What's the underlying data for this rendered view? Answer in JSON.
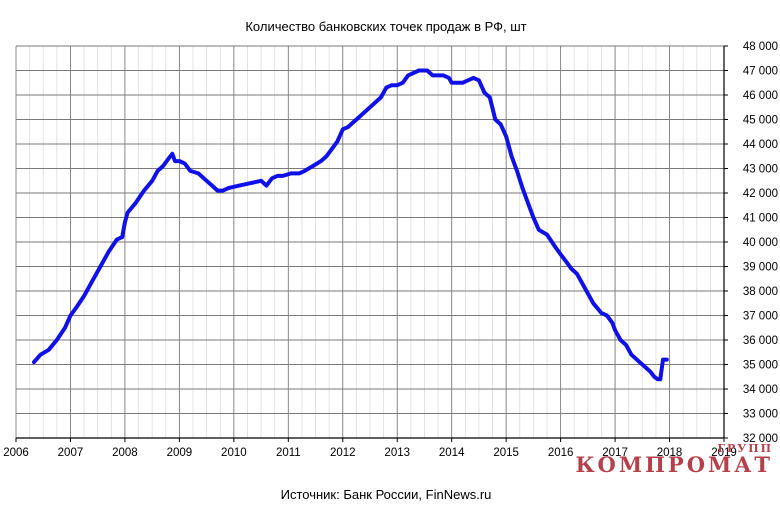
{
  "chart_data": {
    "type": "line",
    "title": "Количество банковских точек продаж в РФ, шт",
    "source": "Источник: Банк России, FinNews.ru",
    "xlabel": "",
    "ylabel": "",
    "xlim": [
      2006,
      2019
    ],
    "ylim": [
      32000,
      48000
    ],
    "grid": true,
    "x_ticks": [
      "2006",
      "2007",
      "2008",
      "2009",
      "2010",
      "2011",
      "2012",
      "2013",
      "2014",
      "2015",
      "2016",
      "2017",
      "2018",
      "2019"
    ],
    "y_ticks": [
      "32 000",
      "33 000",
      "34 000",
      "35 000",
      "36 000",
      "37 000",
      "38 000",
      "39 000",
      "40 000",
      "41 000",
      "42 000",
      "43 000",
      "44 000",
      "45 000",
      "46 000",
      "47 000",
      "48 000"
    ],
    "series": [
      {
        "color": "#1010e8",
        "x": [
          2006.33,
          2006.45,
          2006.6,
          2006.75,
          2006.9,
          2007.0,
          2007.1,
          2007.25,
          2007.4,
          2007.55,
          2007.7,
          2007.85,
          2007.95,
          2008.0,
          2008.05,
          2008.2,
          2008.35,
          2008.5,
          2008.6,
          2008.7,
          2008.8,
          2008.87,
          2008.92,
          2009.0,
          2009.1,
          2009.2,
          2009.35,
          2009.5,
          2009.6,
          2009.7,
          2009.8,
          2009.9,
          2010.1,
          2010.3,
          2010.5,
          2010.6,
          2010.7,
          2010.8,
          2010.9,
          2011.05,
          2011.2,
          2011.3,
          2011.45,
          2011.6,
          2011.7,
          2011.8,
          2011.9,
          2012.0,
          2012.1,
          2012.2,
          2012.3,
          2012.4,
          2012.55,
          2012.7,
          2012.8,
          2012.9,
          2013.0,
          2013.1,
          2013.2,
          2013.3,
          2013.4,
          2013.55,
          2013.65,
          2013.75,
          2013.85,
          2013.95,
          2014.0,
          2014.1,
          2014.2,
          2014.3,
          2014.4,
          2014.5,
          2014.6,
          2014.7,
          2014.8,
          2014.9,
          2015.0,
          2015.1,
          2015.2,
          2015.3,
          2015.4,
          2015.5,
          2015.6,
          2015.75,
          2015.9,
          2016.0,
          2016.1,
          2016.2,
          2016.3,
          2016.4,
          2016.5,
          2016.6,
          2016.75,
          2016.85,
          2016.95,
          2017.0,
          2017.1,
          2017.2,
          2017.3,
          2017.45,
          2017.55,
          2017.65,
          2017.72,
          2017.78,
          2017.83,
          2017.88,
          2017.95
        ],
        "y": [
          35100,
          35400,
          35600,
          36000,
          36500,
          37000,
          37300,
          37800,
          38400,
          39000,
          39600,
          40100,
          40200,
          40800,
          41200,
          41600,
          42100,
          42500,
          42900,
          43100,
          43400,
          43600,
          43300,
          43300,
          43200,
          42900,
          42800,
          42500,
          42300,
          42100,
          42100,
          42200,
          42300,
          42400,
          42500,
          42300,
          42600,
          42700,
          42700,
          42800,
          42800,
          42900,
          43100,
          43300,
          43500,
          43800,
          44100,
          44600,
          44700,
          44900,
          45100,
          45300,
          45600,
          45900,
          46300,
          46400,
          46400,
          46500,
          46800,
          46900,
          47000,
          47000,
          46800,
          46800,
          46800,
          46700,
          46500,
          46500,
          46500,
          46600,
          46700,
          46600,
          46100,
          45900,
          45000,
          44800,
          44300,
          43500,
          42900,
          42200,
          41600,
          41000,
          40500,
          40300,
          39800,
          39500,
          39200,
          38900,
          38700,
          38300,
          37900,
          37500,
          37100,
          37000,
          36700,
          36400,
          36000,
          35800,
          35400,
          35100,
          34900,
          34700,
          34500,
          34400,
          34400,
          35200,
          35200
        ]
      }
    ]
  },
  "watermark": {
    "big": "КОМПРОМАТ",
    "small": "ГРУПП"
  }
}
